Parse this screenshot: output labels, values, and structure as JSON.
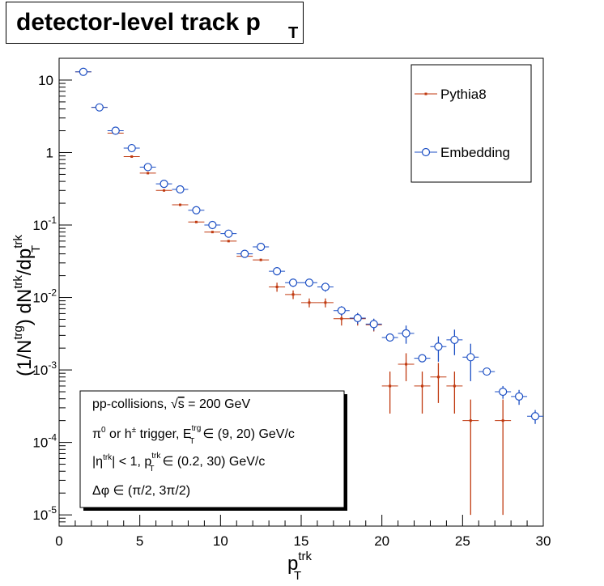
{
  "title": {
    "main": "detector-level track p",
    "sub": "T"
  },
  "chart_data": {
    "type": "scatter",
    "title": "detector-level track p_T",
    "xlabel": "p_T^trk",
    "ylabel": "(1/N^trg) dN^trk/dp_T^trk",
    "xlim": [
      0,
      30
    ],
    "ylim": [
      7e-06,
      20
    ],
    "yscale": "log",
    "x_ticks": [
      "0",
      "5",
      "10",
      "15",
      "20",
      "25",
      "30"
    ],
    "y_ticks": [
      {
        "value": 10,
        "label": "10"
      },
      {
        "value": 1,
        "label": "1"
      },
      {
        "value": 0.1,
        "label": "10",
        "exp": "-1"
      },
      {
        "value": 0.01,
        "label": "10",
        "exp": "-2"
      },
      {
        "value": 0.001,
        "label": "10",
        "exp": "-3"
      },
      {
        "value": 0.0001,
        "label": "10",
        "exp": "-4"
      },
      {
        "value": 1e-05,
        "label": "10",
        "exp": "-5"
      }
    ],
    "grid": false,
    "legend_position": "top-right",
    "series": [
      {
        "name": "Pythia8",
        "color": "#c03a10",
        "marker": "dot",
        "x": [
          1.5,
          2.5,
          3.5,
          4.5,
          5.5,
          6.5,
          7.5,
          8.5,
          9.5,
          10.5,
          11.5,
          12.5,
          13.5,
          14.5,
          15.5,
          16.5,
          17.5,
          18.5,
          19.5,
          20.5,
          21.5,
          22.5,
          23.5,
          24.5,
          25.5,
          27.5
        ],
        "y": [
          13.0,
          4.2,
          1.85,
          0.88,
          0.52,
          0.3,
          0.19,
          0.11,
          0.08,
          0.06,
          0.037,
          0.033,
          0.014,
          0.011,
          0.0085,
          0.0085,
          0.0051,
          0.0051,
          0.0042,
          0.0006,
          0.0012,
          0.0006,
          0.0008,
          0.0006,
          0.0002,
          0.0002
        ],
        "yerr": [
          0,
          0,
          0,
          0,
          0,
          0,
          0,
          0,
          0,
          0,
          0,
          0,
          0.002,
          0.0015,
          0.0012,
          0.0012,
          0.001,
          0.001,
          0.0008,
          0.00035,
          0.0005,
          0.00035,
          0.00045,
          0.00035,
          0.00019,
          0.00019
        ]
      },
      {
        "name": "Embedding",
        "color": "#1c4fc4",
        "marker": "open-circle",
        "x": [
          1.5,
          2.5,
          3.5,
          4.5,
          5.5,
          6.5,
          7.5,
          8.5,
          9.5,
          10.5,
          11.5,
          12.5,
          13.5,
          14.5,
          15.5,
          16.5,
          17.5,
          18.5,
          19.5,
          20.5,
          21.5,
          22.5,
          23.5,
          24.5,
          25.5,
          26.5,
          27.5,
          28.5,
          29.5
        ],
        "y": [
          13.0,
          4.2,
          2.0,
          1.15,
          0.63,
          0.37,
          0.31,
          0.16,
          0.1,
          0.076,
          0.04,
          0.05,
          0.023,
          0.016,
          0.016,
          0.014,
          0.0066,
          0.0052,
          0.0043,
          0.0028,
          0.0032,
          0.00145,
          0.0021,
          0.0026,
          0.0015,
          0.00095,
          0.0005,
          0.00043,
          0.00023
        ],
        "yerr": [
          0,
          0,
          0,
          0,
          0,
          0,
          0,
          0,
          0,
          0,
          0,
          0,
          0.0025,
          0.002,
          0.002,
          0.002,
          0.001,
          0.0009,
          0.0008,
          0,
          0.0009,
          0,
          0.0008,
          0.001,
          0.0008,
          0.0001,
          0.0001,
          0.0001,
          5e-05
        ]
      }
    ],
    "annotations": [
      "pp-collisions,  √s = 200 GeV",
      "π⁰ or h± trigger, E_T^trg ∈ (9, 20) GeV/c",
      "|η^trk| < 1, p_T^trk ∈ (0.2, 30) GeV/c",
      "Δφ ∈ (π/2, 3π/2)"
    ]
  }
}
